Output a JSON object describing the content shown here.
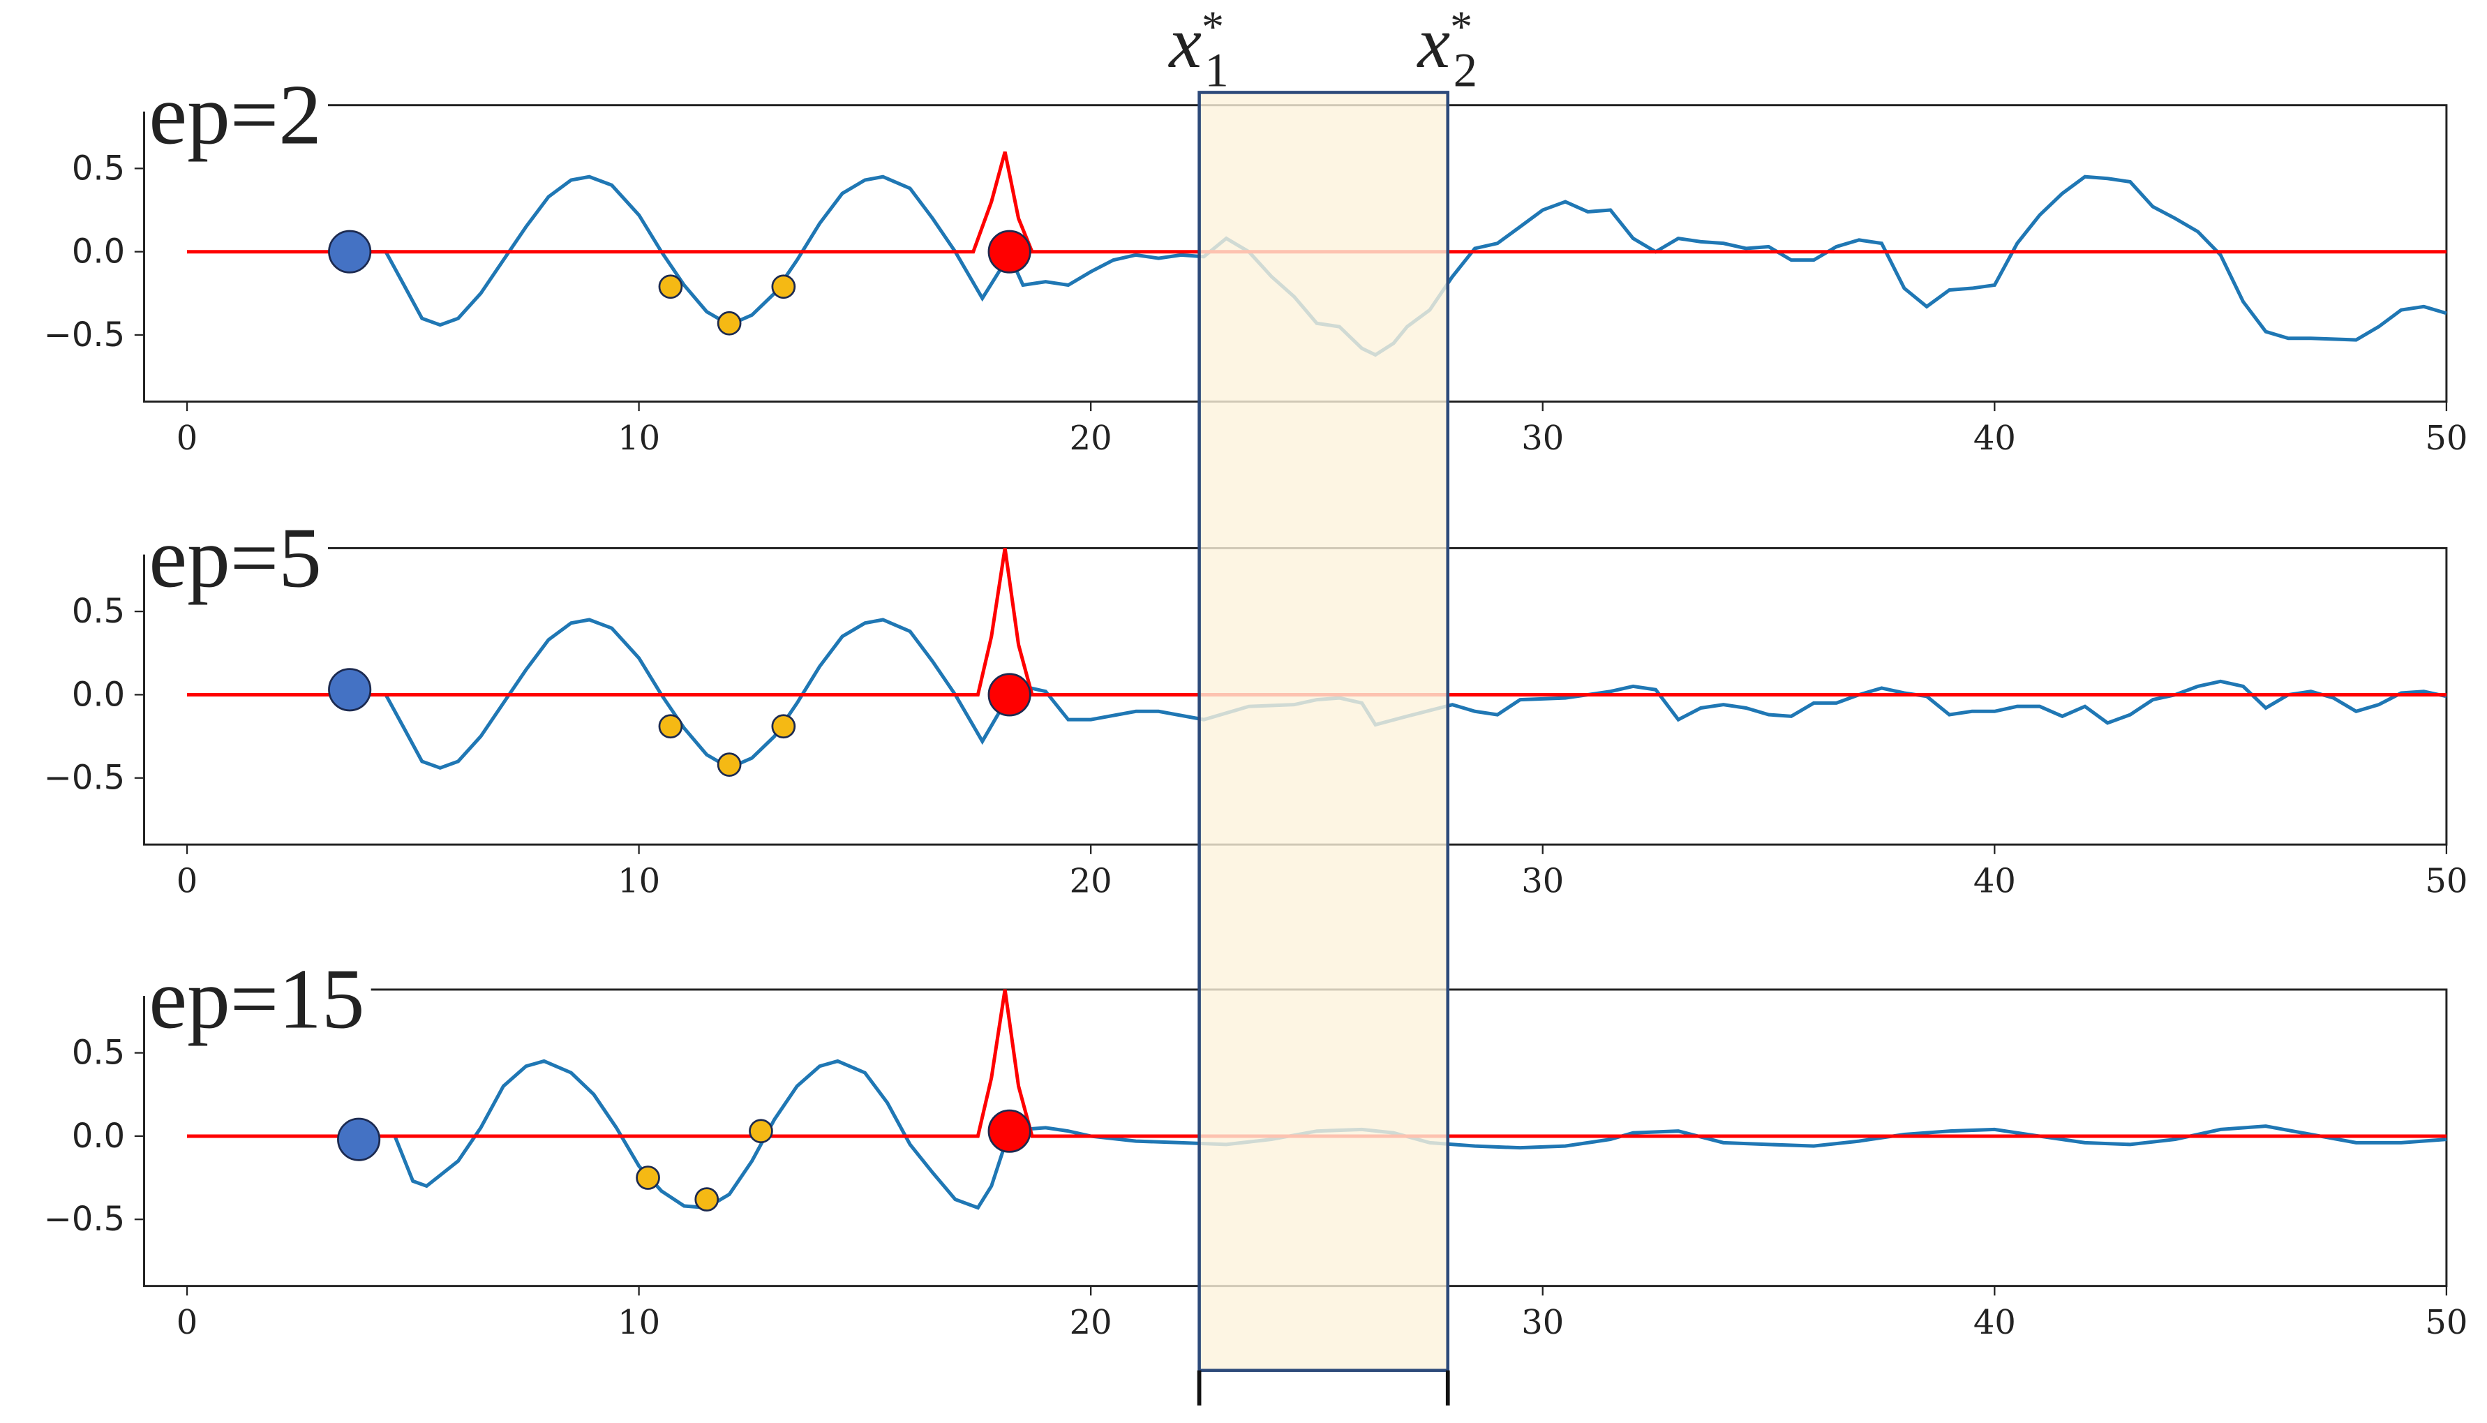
{
  "chart_data": [
    {
      "type": "line",
      "title": "ep=2",
      "xlim": [
        -0.95,
        50
      ],
      "ylim": [
        -0.9,
        0.88
      ],
      "xticks": [
        0,
        10,
        20,
        30,
        40,
        50
      ],
      "yticks": [
        {
          "value": -0.5,
          "label": "−0.5"
        },
        {
          "value": 0,
          "label": "0.0"
        },
        0.5
      ],
      "series": [
        {
          "color": "#1f77b4",
          "x": [
            3.6,
            4.4,
            4.8,
            5.2,
            5.6,
            6,
            6.5,
            7,
            7.5,
            8,
            8.5,
            8.9,
            9.4,
            10,
            10.5,
            11,
            11.5,
            12,
            12.5,
            13,
            13.5,
            14,
            14.5,
            15,
            15.4,
            16,
            16.5,
            17,
            17.6,
            18.2,
            18.5,
            19,
            19.5,
            20,
            20.5,
            21,
            21.5,
            22,
            22.5,
            23,
            23.5,
            24,
            24.5,
            25,
            25.5,
            26,
            26.3,
            26.7,
            27,
            27.5,
            28,
            28.5,
            29,
            29.5,
            30,
            30.5,
            31,
            31.5,
            32,
            32.5,
            33,
            33.5,
            34,
            34.5,
            35,
            35.5,
            36,
            36.5,
            37,
            37.5,
            38,
            38.5,
            39,
            39.5,
            40,
            40.5,
            41,
            41.5,
            42,
            42.5,
            43,
            43.5,
            44,
            44.5,
            45,
            45.5,
            46,
            46.5,
            47,
            48,
            48.5,
            49,
            49.5,
            50
          ],
          "values": [
            0,
            0,
            -0.2,
            -0.4,
            -0.44,
            -0.4,
            -0.25,
            -0.05,
            0.15,
            0.33,
            0.43,
            0.45,
            0.4,
            0.22,
            0,
            -0.2,
            -0.36,
            -0.44,
            -0.38,
            -0.25,
            -0.05,
            0.17,
            0.35,
            0.43,
            0.45,
            0.38,
            0.2,
            0,
            -0.28,
            -0.02,
            -0.2,
            -0.18,
            -0.2,
            -0.12,
            -0.05,
            -0.02,
            -0.04,
            -0.02,
            -0.03,
            0.08,
            0,
            -0.15,
            -0.27,
            -0.43,
            -0.45,
            -0.58,
            -0.62,
            -0.55,
            -0.45,
            -0.35,
            -0.15,
            0.02,
            0.05,
            0.15,
            0.25,
            0.3,
            0.24,
            0.25,
            0.08,
            0,
            0.08,
            0.06,
            0.05,
            0.02,
            0.03,
            -0.05,
            -0.05,
            0.03,
            0.07,
            0.05,
            -0.22,
            -0.33,
            -0.23,
            -0.22,
            -0.2,
            0.05,
            0.22,
            0.35,
            0.45,
            0.44,
            0.42,
            0.27,
            0.2,
            0.12,
            -0.02,
            -0.3,
            -0.48,
            -0.52,
            -0.52,
            -0.53,
            -0.45,
            -0.35,
            -0.33,
            -0.37
          ]
        },
        {
          "color": "#ff0000",
          "x": [
            0,
            17.4,
            17.8,
            18.1,
            18.4,
            18.7,
            50
          ],
          "values": [
            0,
            0,
            0.3,
            0.6,
            0.2,
            0,
            0
          ]
        }
      ],
      "markers": [
        {
          "x": 3.6,
          "y": 0,
          "color": "#4472c4",
          "markersize": 13
        },
        {
          "x": 18.2,
          "y": 0,
          "color": "#ff0000",
          "markersize": 13
        },
        {
          "x": 10.7,
          "y": -0.21,
          "color": "#f5b914",
          "markersize": 7
        },
        {
          "x": 12,
          "y": -0.43,
          "color": "#f5b914",
          "markersize": 7
        },
        {
          "x": 13.2,
          "y": -0.21,
          "color": "#f5b914",
          "markersize": 7
        }
      ]
    },
    {
      "type": "line",
      "title": "ep=5",
      "xlim": [
        -0.95,
        50
      ],
      "ylim": [
        -0.9,
        0.88
      ],
      "xticks": [
        0,
        10,
        20,
        30,
        40,
        50
      ],
      "yticks": [
        {
          "value": -0.5,
          "label": "−0.5"
        },
        {
          "value": 0,
          "label": "0.0"
        },
        0.5
      ],
      "series": [
        {
          "color": "#1f77b4",
          "x": [
            3.6,
            4.4,
            4.8,
            5.2,
            5.6,
            6,
            6.5,
            7,
            7.5,
            8,
            8.5,
            8.9,
            9.4,
            10,
            10.5,
            11,
            11.5,
            12,
            12.5,
            13,
            13.5,
            14,
            14.5,
            15,
            15.4,
            16,
            16.5,
            17,
            17.6,
            18.2,
            18.5,
            19,
            19.5,
            20,
            21,
            21.5,
            22.5,
            23.5,
            24.5,
            25,
            25.5,
            26,
            26.3,
            27,
            28,
            28.5,
            29,
            29.5,
            30.5,
            31,
            31.5,
            32,
            32.5,
            33,
            33.5,
            34,
            34.5,
            35,
            35.5,
            36,
            36.5,
            37,
            37.5,
            38,
            38.5,
            39,
            39.5,
            40,
            40.5,
            41,
            41.5,
            42,
            42.5,
            43,
            43.5,
            44,
            44.5,
            45,
            45.5,
            46,
            46.5,
            47,
            47.5,
            48,
            48.5,
            49,
            49.5,
            50
          ],
          "values": [
            0,
            0,
            -0.2,
            -0.4,
            -0.44,
            -0.4,
            -0.25,
            -0.05,
            0.15,
            0.33,
            0.43,
            0.45,
            0.4,
            0.22,
            0,
            -0.2,
            -0.36,
            -0.44,
            -0.38,
            -0.25,
            -0.05,
            0.17,
            0.35,
            0.43,
            0.45,
            0.38,
            0.2,
            0,
            -0.28,
            0,
            0.05,
            0.02,
            -0.15,
            -0.15,
            -0.1,
            -0.1,
            -0.15,
            -0.07,
            -0.06,
            -0.03,
            -0.02,
            -0.05,
            -0.18,
            -0.13,
            -0.06,
            -0.1,
            -0.12,
            -0.03,
            -0.02,
            0,
            0.02,
            0.05,
            0.03,
            -0.15,
            -0.08,
            -0.06,
            -0.08,
            -0.12,
            -0.13,
            -0.05,
            -0.05,
            0,
            0.04,
            0.01,
            -0.01,
            -0.12,
            -0.1,
            -0.1,
            -0.07,
            -0.07,
            -0.13,
            -0.07,
            -0.17,
            -0.12,
            -0.03,
            0,
            0.05,
            0.08,
            0.05,
            -0.08,
            0,
            0.02,
            -0.02,
            -0.1,
            -0.06,
            0.01,
            0.02,
            -0.01
          ]
        },
        {
          "color": "#ff0000",
          "x": [
            0,
            17.5,
            17.8,
            18.1,
            18.4,
            18.7,
            50
          ],
          "values": [
            0,
            0,
            0.35,
            0.88,
            0.3,
            0,
            0
          ]
        }
      ],
      "markers": [
        {
          "x": 3.6,
          "y": 0.03,
          "color": "#4472c4",
          "markersize": 13
        },
        {
          "x": 18.2,
          "y": 0,
          "color": "#ff0000",
          "markersize": 13
        },
        {
          "x": 10.7,
          "y": -0.19,
          "color": "#f5b914",
          "markersize": 7
        },
        {
          "x": 12,
          "y": -0.42,
          "color": "#f5b914",
          "markersize": 7
        },
        {
          "x": 13.2,
          "y": -0.19,
          "color": "#f5b914",
          "markersize": 7
        }
      ]
    },
    {
      "type": "line",
      "title": "ep=15",
      "xlim": [
        -0.95,
        50
      ],
      "ylim": [
        -0.9,
        0.88
      ],
      "xticks": [
        0,
        10,
        20,
        30,
        40,
        50
      ],
      "yticks": [
        {
          "value": -0.5,
          "label": "−0.5"
        },
        {
          "value": 0,
          "label": "0.0"
        },
        0.5
      ],
      "series": [
        {
          "color": "#1f77b4",
          "x": [
            3.8,
            4.6,
            5,
            5.3,
            6,
            6.5,
            7,
            7.5,
            7.9,
            8.5,
            9,
            9.5,
            10,
            10.5,
            11,
            11.5,
            12,
            12.5,
            13,
            13.5,
            14,
            14.4,
            15,
            15.5,
            16,
            16.5,
            17,
            17.5,
            17.8,
            18.2,
            18.5,
            19,
            19.5,
            20,
            21,
            22,
            23,
            24,
            25,
            26,
            26.7,
            27.5,
            28.5,
            29.5,
            30.5,
            31.5,
            32,
            33,
            34,
            35,
            36,
            37,
            38,
            39,
            40,
            41,
            42,
            43,
            44,
            45,
            46,
            47,
            48,
            49,
            50
          ],
          "values": [
            0,
            0,
            -0.27,
            -0.3,
            -0.15,
            0.05,
            0.3,
            0.42,
            0.45,
            0.38,
            0.25,
            0.05,
            -0.18,
            -0.33,
            -0.42,
            -0.43,
            -0.35,
            -0.15,
            0.1,
            0.3,
            0.42,
            0.45,
            0.38,
            0.2,
            -0.05,
            -0.22,
            -0.38,
            -0.43,
            -0.3,
            0.03,
            0.04,
            0.05,
            0.03,
            0,
            -0.03,
            -0.04,
            -0.05,
            -0.02,
            0.03,
            0.04,
            0.02,
            -0.04,
            -0.06,
            -0.07,
            -0.06,
            -0.02,
            0.02,
            0.03,
            -0.04,
            -0.05,
            -0.06,
            -0.03,
            0.01,
            0.03,
            0.04,
            0,
            -0.04,
            -0.05,
            -0.02,
            0.04,
            0.06,
            0.01,
            -0.04,
            -0.04,
            -0.02
          ]
        },
        {
          "color": "#ff0000",
          "x": [
            0,
            17.5,
            17.8,
            18.1,
            18.4,
            18.7,
            50
          ],
          "values": [
            0,
            0,
            0.35,
            0.88,
            0.3,
            0,
            0
          ]
        }
      ],
      "markers": [
        {
          "x": 3.8,
          "y": -0.02,
          "color": "#4472c4",
          "markersize": 13
        },
        {
          "x": 18.2,
          "y": 0.03,
          "color": "#ff0000",
          "markersize": 13
        },
        {
          "x": 10.2,
          "y": -0.25,
          "color": "#f5b914",
          "markersize": 7
        },
        {
          "x": 11.5,
          "y": -0.38,
          "color": "#f5b914",
          "markersize": 7
        },
        {
          "x": 12.7,
          "y": 0.03,
          "color": "#f5b914",
          "markersize": 7
        }
      ]
    }
  ],
  "highlight": {
    "x": [
      22.4,
      27.9
    ],
    "color": "#fdf3dc",
    "labels": [
      {
        "base": "x",
        "sub": "1",
        "sup": "*"
      },
      {
        "base": "x",
        "sub": "2",
        "sup": "*"
      }
    ]
  }
}
